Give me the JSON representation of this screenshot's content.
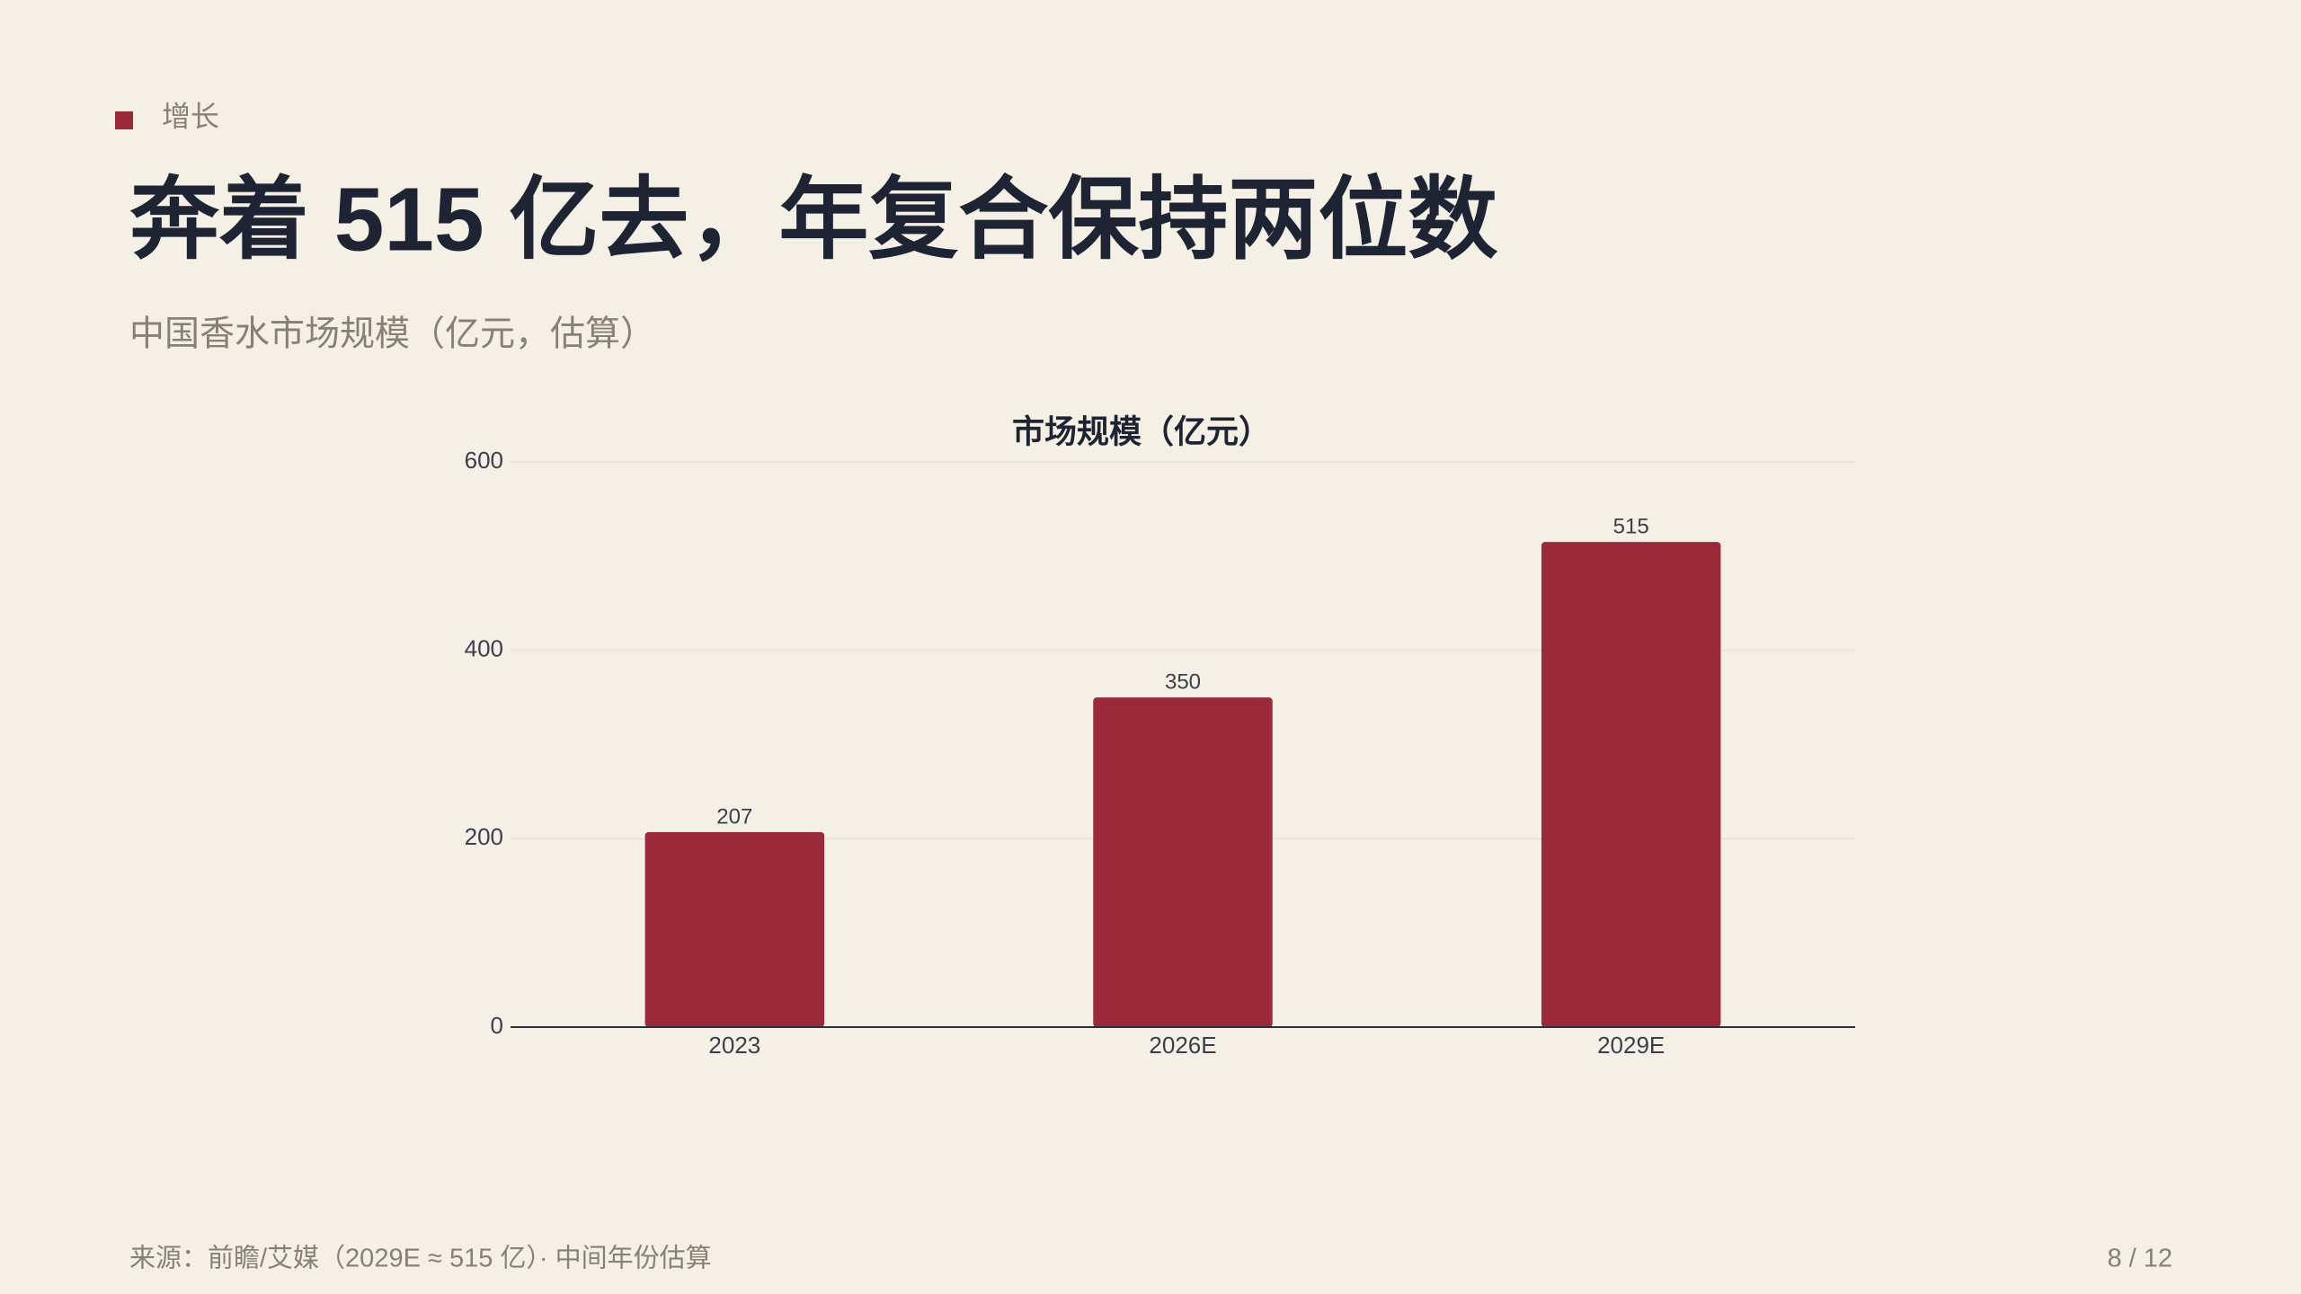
{
  "header": {
    "tag": "增长",
    "title": "奔着 515 亿去，年复合保持两位数",
    "subtitle": "中国香水市场规模（亿元，估算）"
  },
  "chart_data": {
    "type": "bar",
    "title": "市场规模（亿元）",
    "categories": [
      "2023",
      "2026E",
      "2029E"
    ],
    "values": [
      207,
      350,
      515
    ],
    "color": "#9a2a3a",
    "ylim": [
      0,
      600
    ],
    "yticks": [
      0,
      200,
      400,
      600
    ],
    "grid": true
  },
  "footer": {
    "source": "来源：前瞻/艾媒（2029E ≈ 515 亿）· 中间年份估算",
    "page": "8 / 12"
  }
}
